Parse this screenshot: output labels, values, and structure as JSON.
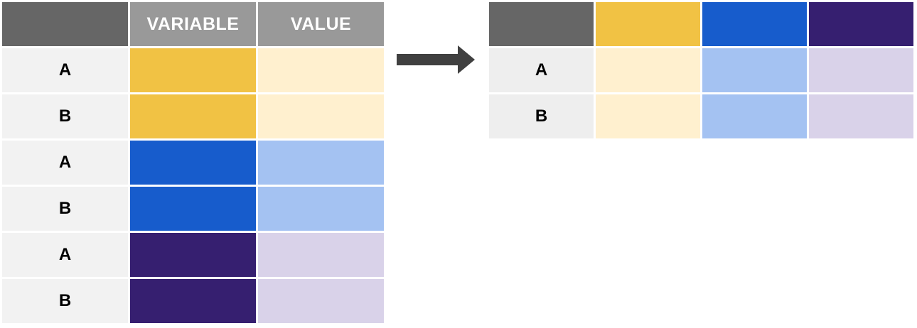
{
  "colors": {
    "header_dark": "#666666",
    "header_light": "#999999",
    "id_cell": "#f2f2f2",
    "id_cell_right": "#eeeeee",
    "yellow": "#f1c244",
    "yellow_light": "#fff0cf",
    "blue": "#175ccc",
    "blue_light": "#a4c2f2",
    "purple": "#361f70",
    "purple_light": "#d9d2e9",
    "arrow": "#404040"
  },
  "left_table": {
    "headers": [
      "",
      "VARIABLE",
      "VALUE"
    ],
    "rows": [
      {
        "id": "A",
        "variable": "yellow",
        "value": "yellow"
      },
      {
        "id": "B",
        "variable": "yellow",
        "value": "yellow"
      },
      {
        "id": "A",
        "variable": "blue",
        "value": "blue"
      },
      {
        "id": "B",
        "variable": "blue",
        "value": "blue"
      },
      {
        "id": "A",
        "variable": "purple",
        "value": "purple"
      },
      {
        "id": "B",
        "variable": "purple",
        "value": "purple"
      }
    ]
  },
  "right_table": {
    "header_colors": [
      "header_dark",
      "yellow",
      "blue",
      "purple"
    ],
    "rows": [
      {
        "id": "A",
        "values": [
          "yellow",
          "blue",
          "purple"
        ]
      },
      {
        "id": "B",
        "values": [
          "yellow",
          "blue",
          "purple"
        ]
      }
    ]
  },
  "arrow_icon": "right-arrow-icon"
}
